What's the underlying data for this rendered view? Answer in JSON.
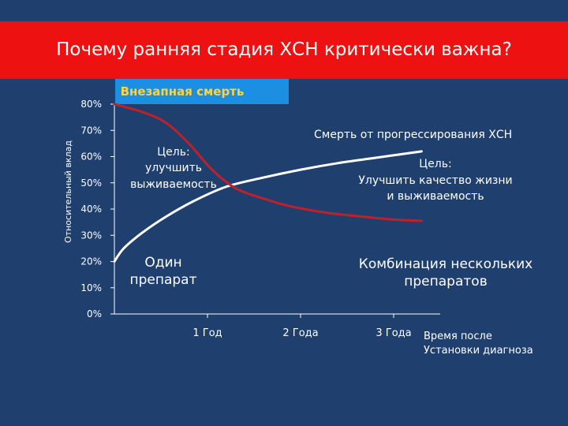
{
  "slide": {
    "title": "Почему ранняя стадия ХСН критически важна?"
  },
  "colors": {
    "background": "#1f3f6e",
    "title_bar": "#ee1111",
    "sudden_death_box": "#1c8fe3",
    "sudden_death_text": "#ffd23f",
    "progression_line": "#c0202a",
    "combo_line": "#ffffff",
    "axis": "#ffffff"
  },
  "chart_data": {
    "type": "line",
    "ylabel": "Относительный вклад",
    "xlabel": "Время после Установки диагноза",
    "xlabel_lines": [
      "Время после",
      "Установки диагноза"
    ],
    "ylim": [
      0,
      80
    ],
    "xlim": [
      0,
      3.5
    ],
    "y_ticks": [
      0,
      10,
      20,
      30,
      40,
      50,
      60,
      70,
      80
    ],
    "y_tick_labels": [
      "0%",
      "10%",
      "20%",
      "30%",
      "40%",
      "50%",
      "60%",
      "70%",
      "80%"
    ],
    "x_ticks": [
      1,
      2,
      3
    ],
    "x_tick_labels": [
      "1 Год",
      "2 Года",
      "3 Года"
    ],
    "grid": false,
    "series": [
      {
        "name": "Внезапная смерть",
        "color": "#c0202a",
        "points": [
          [
            0.0,
            80
          ],
          [
            0.3,
            77
          ],
          [
            0.55,
            73
          ],
          [
            0.8,
            65
          ],
          [
            1.05,
            55
          ],
          [
            1.3,
            48
          ],
          [
            1.6,
            44
          ],
          [
            1.9,
            41
          ],
          [
            2.3,
            38.5
          ],
          [
            2.7,
            37
          ],
          [
            3.0,
            36
          ],
          [
            3.3,
            35.5
          ]
        ]
      },
      {
        "name": "Смерть от прогрессирования ХСН",
        "color": "#ffffff",
        "points": [
          [
            0.0,
            20
          ],
          [
            0.1,
            25
          ],
          [
            0.3,
            31
          ],
          [
            0.55,
            37
          ],
          [
            0.85,
            43
          ],
          [
            1.2,
            48.5
          ],
          [
            1.6,
            52
          ],
          [
            2.0,
            55
          ],
          [
            2.4,
            57.5
          ],
          [
            2.8,
            59.5
          ],
          [
            3.3,
            62
          ]
        ]
      }
    ],
    "annotations": {
      "sudden_death": "Внезапная смерть",
      "progression_death": "Смерть от прогрессирования ХСН",
      "goal_survival": [
        "Цель:",
        "улучшить",
        "выживаемость"
      ],
      "goal_quality": [
        "Цель:",
        "Улучшить качество жизни",
        "и выживаемость"
      ],
      "single_drug": [
        "Один",
        "препарат"
      ],
      "combination": [
        "Комбинация нескольких",
        "препаратов"
      ]
    }
  }
}
